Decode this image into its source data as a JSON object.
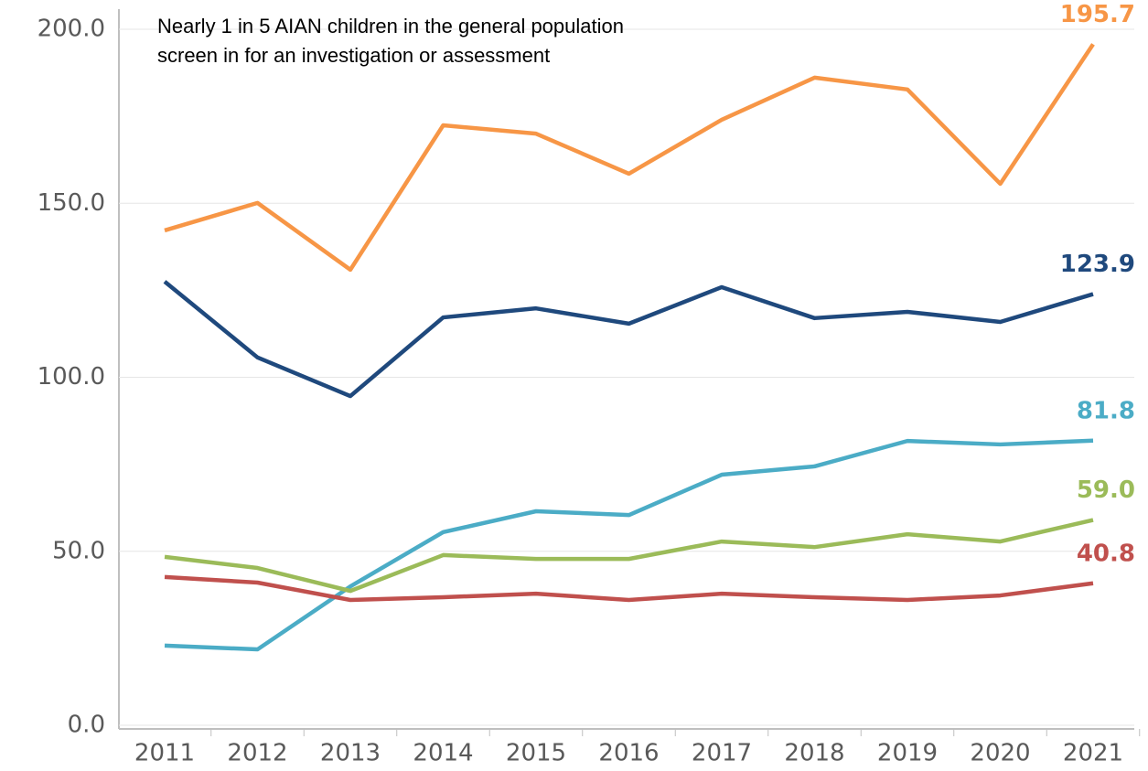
{
  "chart_data": {
    "type": "line",
    "annotation": [
      "Nearly 1 in 5 AIAN children in the general population",
      "screen in for an investigation or assessment"
    ],
    "x": [
      "2011",
      "2012",
      "2013",
      "2014",
      "2015",
      "2016",
      "2017",
      "2018",
      "2019",
      "2020",
      "2021"
    ],
    "series": [
      {
        "color": "#f79646",
        "values": [
          142.2,
          150.1,
          130.9,
          172.4,
          170.0,
          158.5,
          174.0,
          186.1,
          182.7,
          155.6,
          195.7
        ],
        "value_labels": [
          null,
          null,
          null,
          null,
          null,
          null,
          null,
          null,
          null,
          null,
          "195.7"
        ]
      },
      {
        "color": "#1f497d",
        "values": [
          127.5,
          105.7,
          94.6,
          117.2,
          119.8,
          115.4,
          125.9,
          117.0,
          118.8,
          115.9,
          123.9
        ],
        "value_labels": [
          null,
          null,
          null,
          null,
          null,
          null,
          null,
          null,
          null,
          null,
          "123.9"
        ]
      },
      {
        "color": "#4bacc6",
        "values": [
          22.9,
          21.8,
          39.9,
          55.5,
          61.5,
          60.4,
          72.0,
          74.4,
          81.7,
          80.7,
          81.8
        ],
        "value_labels": [
          null,
          null,
          null,
          null,
          null,
          null,
          null,
          null,
          null,
          null,
          "81.8"
        ]
      },
      {
        "color": "#9bbb59",
        "values": [
          48.4,
          45.2,
          38.6,
          48.9,
          47.8,
          47.8,
          52.8,
          51.2,
          54.9,
          52.8,
          59.0
        ],
        "value_labels": [
          null,
          null,
          null,
          null,
          null,
          null,
          null,
          null,
          null,
          null,
          "59.0"
        ]
      },
      {
        "color": "#c0504d",
        "values": [
          42.6,
          41.0,
          36.0,
          36.8,
          37.8,
          36.0,
          37.8,
          36.8,
          36.0,
          37.3,
          40.8
        ],
        "value_labels": [
          null,
          null,
          null,
          null,
          null,
          null,
          null,
          null,
          null,
          null,
          "40.8"
        ]
      }
    ],
    "ylim": [
      0,
      206
    ],
    "yticks": [
      {
        "value": 0,
        "label": "0.0"
      },
      {
        "value": 50,
        "label": "50.0"
      },
      {
        "value": 100,
        "label": "100.0"
      },
      {
        "value": 150,
        "label": "150.0"
      },
      {
        "value": 200,
        "label": "200.0"
      }
    ],
    "grid": true
  }
}
